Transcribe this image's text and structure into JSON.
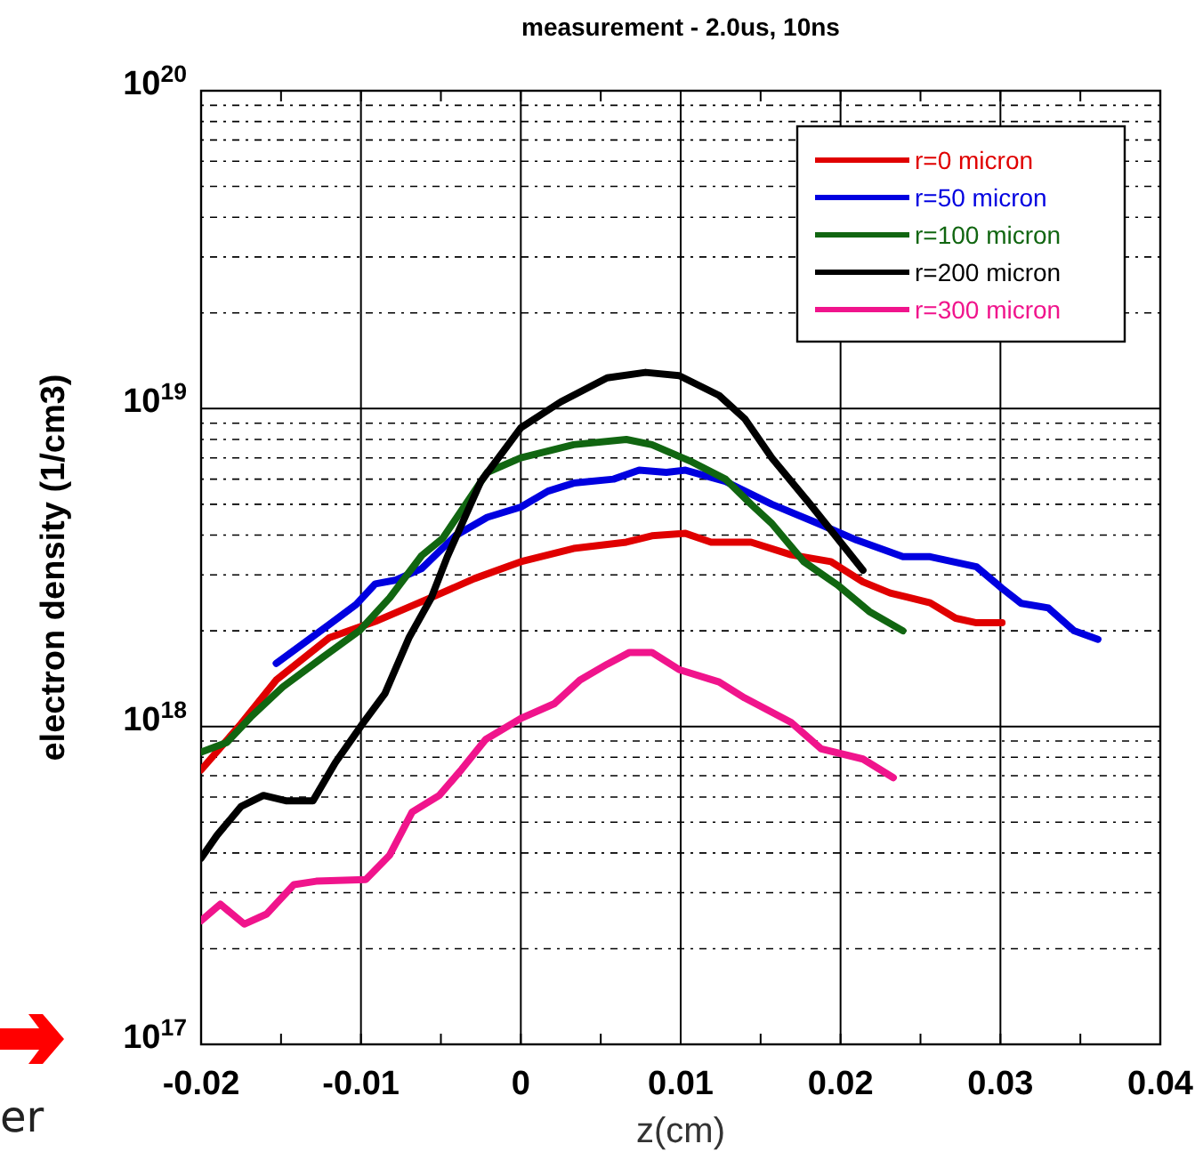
{
  "chart_data": {
    "type": "line",
    "title": "measurement - 2.0us, 10ns",
    "xlabel": "z(cm)",
    "ylabel": "electron density (1/cm3)",
    "log": "y",
    "grid": true,
    "legend": "top right",
    "line_style": "solid",
    "marker": "none",
    "xlim": [
      -0.02,
      0.04
    ],
    "ylim": [
      1e+17,
      1e+20
    ],
    "xticks": [
      -0.02,
      {
        "value": -0.015,
        "label": null
      },
      -0.01,
      {
        "value": -0.005,
        "label": null
      },
      0,
      {
        "value": 0.005,
        "label": null
      },
      0.01,
      {
        "value": 0.015,
        "label": null
      },
      0.02,
      {
        "value": 0.025,
        "label": null
      },
      0.03,
      {
        "value": 0.035,
        "label": null
      },
      0.04
    ],
    "yticks": [
      {
        "value": 1e+17,
        "label": "10$^{17}$"
      },
      {
        "value": 2e+17,
        "label": null
      },
      {
        "value": 3e+17,
        "label": null
      },
      {
        "value": 4e+17,
        "label": null
      },
      {
        "value": 5e+17,
        "label": null
      },
      {
        "value": 6e+17,
        "label": null
      },
      {
        "value": 7e+17,
        "label": null
      },
      {
        "value": 8e+17,
        "label": null
      },
      {
        "value": 9e+17,
        "label": null
      },
      {
        "value": 1e+18,
        "label": "10$^{18}$"
      },
      {
        "value": 2e+18,
        "label": null
      },
      {
        "value": 3e+18,
        "label": null
      },
      {
        "value": 4e+18,
        "label": null
      },
      {
        "value": 5e+18,
        "label": null
      },
      {
        "value": 6e+18,
        "label": null
      },
      {
        "value": 7e+18,
        "label": null
      },
      {
        "value": 8e+18,
        "label": null
      },
      {
        "value": 9e+18,
        "label": null
      },
      {
        "value": 1e+19,
        "label": "10$^{19}$"
      },
      {
        "value": 2e+19,
        "label": null
      },
      {
        "value": 3e+19,
        "label": null
      },
      {
        "value": 4e+19,
        "label": null
      },
      {
        "value": 5e+19,
        "label": null
      },
      {
        "value": 6e+19,
        "label": null
      },
      {
        "value": 7e+19,
        "label": null
      },
      {
        "value": 8e+19,
        "label": null
      },
      {
        "value": 9e+19,
        "label": null
      },
      {
        "value": 1e+20,
        "label": "10$^{20}$"
      }
    ],
    "annotations": [
      "er"
    ],
    "series": [
      {
        "name": "r=0 micron",
        "color": "#e00000",
        "x": [
          -0.02,
          -0.0175,
          -0.0153,
          -0.012,
          -0.0091,
          -0.0054,
          -0.0029,
          0,
          0.0033,
          0.0066,
          0.0082,
          0.0103,
          0.0119,
          0.0144,
          0.0169,
          0.0194,
          0.0214,
          0.0231,
          0.0256,
          0.0272,
          0.0285,
          0.0301
        ],
        "values": [
          7.3e+17,
          1.02e+18,
          1.4e+18,
          1.9e+18,
          2.14e+18,
          2.57e+18,
          2.92e+18,
          3.3e+18,
          3.63e+18,
          3.8e+18,
          3.98e+18,
          4.05e+18,
          3.8e+18,
          3.8e+18,
          3.47e+18,
          3.3e+18,
          2.85e+18,
          2.63e+18,
          2.45e+18,
          2.19e+18,
          2.12e+18,
          2.12e+18
        ]
      },
      {
        "name": "r=50 micron",
        "color": "#0000e0",
        "x": [
          -0.0153,
          -0.012,
          -0.0103,
          -0.0091,
          -0.0078,
          -0.0062,
          -0.0041,
          -0.0021,
          0,
          0.0017,
          0.0033,
          0.0058,
          0.0074,
          0.0091,
          0.0103,
          0.0128,
          0.0157,
          0.0186,
          0.021,
          0.0239,
          0.0256,
          0.0285,
          0.0301,
          0.0313,
          0.033,
          0.0346,
          0.0361
        ],
        "values": [
          1.58e+18,
          2.09e+18,
          2.42e+18,
          2.81e+18,
          2.89e+18,
          3.14e+18,
          3.98e+18,
          4.55e+18,
          4.9e+18,
          5.5e+18,
          5.83e+18,
          6e+18,
          6.4e+18,
          6.3e+18,
          6.4e+18,
          5.9e+18,
          5e+18,
          4.35e+18,
          3.86e+18,
          3.42e+18,
          3.42e+18,
          3.18e+18,
          2.72e+18,
          2.44e+18,
          2.36e+18,
          2e+18,
          1.88e+18
        ]
      },
      {
        "name": "r=100 micron",
        "color": "#116611",
        "x": [
          -0.02,
          -0.0184,
          -0.0169,
          -0.0149,
          -0.0124,
          -0.0101,
          -0.0082,
          -0.0062,
          -0.0049,
          -0.0021,
          0,
          0.0033,
          0.0066,
          0.0082,
          0.0107,
          0.0128,
          0.0144,
          0.0157,
          0.0177,
          0.0198,
          0.0218,
          0.0239
        ],
        "values": [
          8.3e+17,
          8.9e+17,
          1.07e+18,
          1.33e+18,
          1.65e+18,
          2e+18,
          2.54e+18,
          3.45e+18,
          3.9e+18,
          6.3e+18,
          7e+18,
          7.7e+18,
          8e+18,
          7.7e+18,
          6.8e+18,
          6e+18,
          5e+18,
          4.35e+18,
          3.3e+18,
          2.79e+18,
          2.3e+18,
          2e+18
        ]
      },
      {
        "name": "r=200 micron",
        "color": "#000000",
        "x": [
          -0.02,
          -0.019,
          -0.0175,
          -0.0161,
          -0.0147,
          -0.013,
          -0.0116,
          -0.0099,
          -0.0085,
          -0.007,
          -0.0056,
          -0.0046,
          -0.0025,
          0,
          0.0025,
          0.0054,
          0.0078,
          0.0099,
          0.0124,
          0.014,
          0.0157,
          0.0181,
          0.0214
        ],
        "values": [
          3.85e+17,
          4.55e+17,
          5.6e+17,
          6.07e+17,
          5.84e+17,
          5.84e+17,
          7.7e+17,
          1.02e+18,
          1.27e+18,
          1.9e+18,
          2.54e+18,
          3.42e+18,
          5.9e+18,
          8.7e+18,
          1.05e+19,
          1.25e+19,
          1.3e+19,
          1.27e+19,
          1.1e+19,
          9.3e+18,
          7e+18,
          5e+18,
          3.1e+18
        ]
      },
      {
        "name": "r=300 micron",
        "color": "#f0148c",
        "x": [
          -0.02,
          -0.0188,
          -0.0173,
          -0.0159,
          -0.0142,
          -0.0128,
          -0.0097,
          -0.0082,
          -0.0068,
          -0.0051,
          -0.0037,
          -0.0022,
          0,
          0.0021,
          0.0037,
          0.0054,
          0.0068,
          0.0082,
          0.0099,
          0.0124,
          0.014,
          0.0169,
          0.0188,
          0.0214,
          0.0233
        ],
        "values": [
          2.45e+17,
          2.76e+17,
          2.39e+17,
          2.57e+17,
          3.18e+17,
          3.26e+17,
          3.3e+17,
          3.94e+17,
          5.38e+17,
          6.07e+17,
          7.33e+17,
          9.1e+17,
          1.06e+18,
          1.18e+18,
          1.4e+18,
          1.57e+18,
          1.71e+18,
          1.71e+18,
          1.51e+18,
          1.38e+18,
          1.23e+18,
          1.03e+18,
          8.5e+17,
          7.9e+17,
          6.9e+17
        ]
      }
    ]
  }
}
